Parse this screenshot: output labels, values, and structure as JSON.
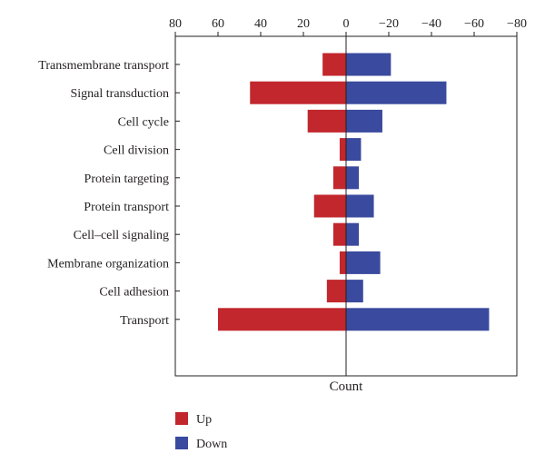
{
  "chart_data": {
    "type": "bar",
    "orientation": "horizontal-diverging",
    "categories": [
      "Transmembrane transport",
      "Signal transduction",
      "Cell cycle",
      "Cell division",
      "Protein targeting",
      "Protein transport",
      "Cell–cell signaling",
      "Membrane organization",
      "Cell adhesion",
      "Transport"
    ],
    "series": [
      {
        "name": "Up",
        "color": "#c1272d",
        "values": [
          11,
          45,
          18,
          3,
          6,
          15,
          6,
          3,
          9,
          60
        ]
      },
      {
        "name": "Down",
        "color": "#3a4a9e",
        "values": [
          -21,
          -47,
          -17,
          -7,
          -6,
          -13,
          -6,
          -16,
          -8,
          -67
        ]
      }
    ],
    "xlabel": "Count",
    "ylabel": "",
    "xlim": [
      80,
      -80
    ],
    "xticks": [
      80,
      60,
      40,
      20,
      0,
      -20,
      -40,
      -60,
      -80
    ],
    "xtick_labels": [
      "80",
      "60",
      "40",
      "20",
      "0",
      "−20",
      "−40",
      "−60",
      "−80"
    ],
    "x_axis_position": "top",
    "grid": false,
    "legend_position": "bottom-left"
  }
}
